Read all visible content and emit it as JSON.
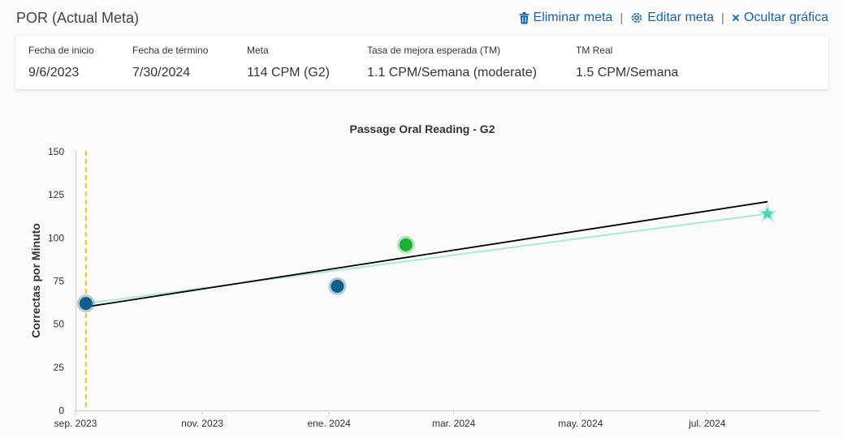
{
  "header": {
    "title": "POR (Actual Meta)",
    "delete_label": "Eliminar meta",
    "edit_label": "Editar meta",
    "hide_label": "Ocultar gráfica",
    "separator": "|"
  },
  "summary": {
    "fields": [
      {
        "label": "Fecha de inicio",
        "value": "9/6/2023"
      },
      {
        "label": "Fecha de término",
        "value": "7/30/2024"
      },
      {
        "label": "Meta",
        "value": "114 CPM (G2)"
      },
      {
        "label": "Tasa de mejora esperada (TM)",
        "value": "1.1 CPM/Semana (moderate)"
      },
      {
        "label": "TM Real",
        "value": "1.5 CPM/Semana"
      }
    ]
  },
  "colors": {
    "accent": "#1565a8",
    "point_blue": "#0e5f8a",
    "point_green": "#1db031",
    "aim_line": "#a9eadb",
    "trend_line": "#000000",
    "start_marker": "#f1c40f",
    "goal_star": "#3fd9b4"
  },
  "chart_data": {
    "type": "scatter",
    "title": "Passage Oral Reading - G2",
    "ylabel": "Correctas por Minuto",
    "xlabel": "",
    "ylim": [
      0,
      150
    ],
    "yticks": [
      0,
      25,
      50,
      75,
      100,
      125,
      150
    ],
    "xlim": [
      "2023-09-01",
      "2024-08-24"
    ],
    "xticks": [
      {
        "date": "2023-09-01",
        "label": "sep. 2023"
      },
      {
        "date": "2023-11-01",
        "label": "nov. 2023"
      },
      {
        "date": "2024-01-01",
        "label": "ene. 2024"
      },
      {
        "date": "2024-03-01",
        "label": "mar. 2024"
      },
      {
        "date": "2024-05-01",
        "label": "may. 2024"
      },
      {
        "date": "2024-07-01",
        "label": "jul. 2024"
      }
    ],
    "points": [
      {
        "date": "2023-09-06",
        "value": 62,
        "color": "point_blue"
      },
      {
        "date": "2024-01-05",
        "value": 72,
        "color": "point_blue"
      },
      {
        "date": "2024-02-07",
        "value": 96,
        "color": "point_green"
      }
    ],
    "aim_line": [
      {
        "date": "2023-09-06",
        "value": 62
      },
      {
        "date": "2024-07-30",
        "value": 114
      }
    ],
    "trend_line": [
      {
        "date": "2023-09-06",
        "value": 60
      },
      {
        "date": "2024-07-30",
        "value": 121
      }
    ],
    "goal": {
      "date": "2024-07-30",
      "value": 114
    },
    "start_line_date": "2023-09-06",
    "grid": false
  }
}
